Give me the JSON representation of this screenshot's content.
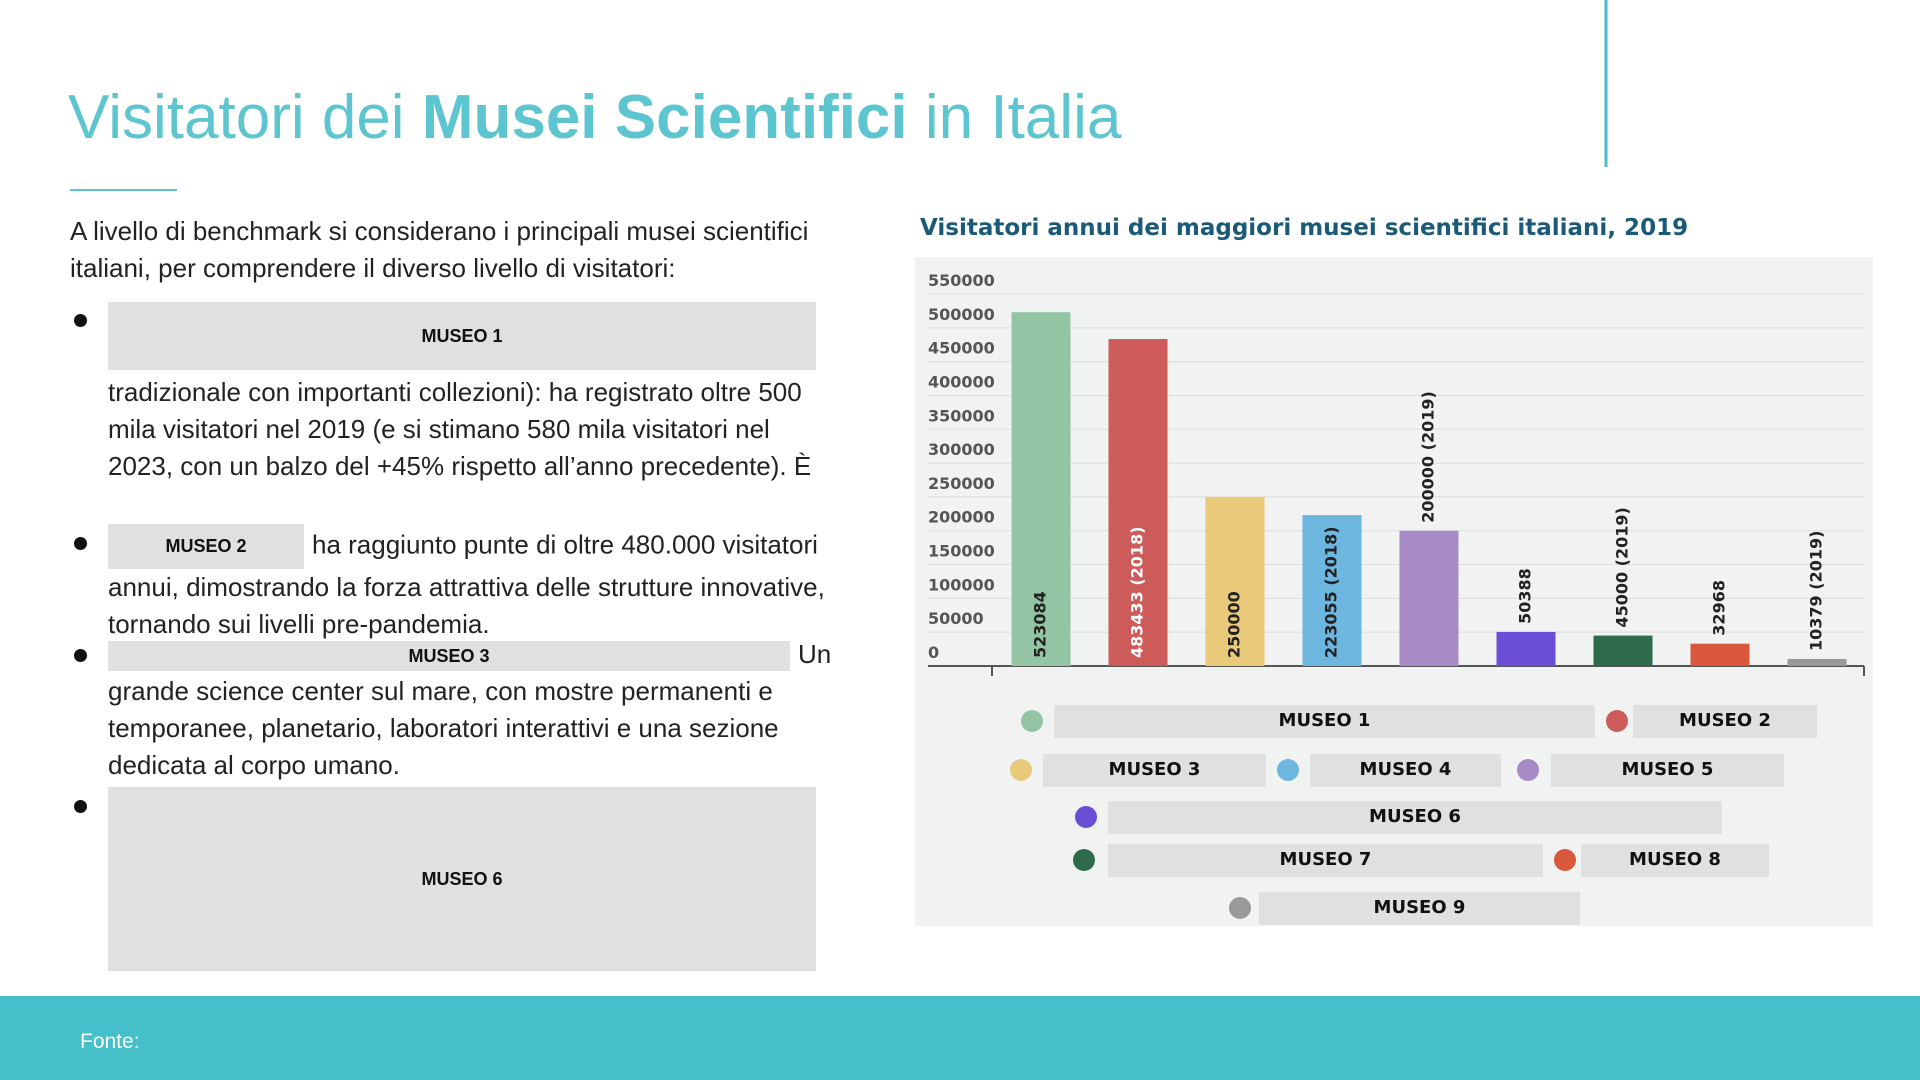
{
  "title": {
    "parts": [
      "Visitatori dei",
      "Musei Scientifici",
      "in Italia"
    ]
  },
  "body": {
    "intro": "A livello di benchmark si considerano i principali musei scientifici italiani, per comprendere il diverso livello di visitatori:",
    "bullets": [
      {
        "label": "MUSEO 1",
        "text": "tradizionale con importanti collezioni): ha registrato oltre 500 mila visitatori nel 2019 (e si stimano 580 mila visitatori nel 2023, con un balzo del +45% rispetto all’anno precedente). È"
      },
      {
        "label": "MUSEO 2",
        "text": "ha raggiunto punte di oltre 480.000 visitatori annui, dimostrando la forza attrattiva delle strutture innovative, tornando sui livelli pre-pandemia."
      },
      {
        "label": "MUSEO 3",
        "text": "Un grande science center sul mare, con mostre permanenti e temporanee, planetario, laboratori interattivi e una sezione dedicata al corpo umano."
      },
      {
        "label": "MUSEO 6"
      }
    ]
  },
  "footer": {
    "source": "Fonte:"
  },
  "chart_data": {
    "type": "bar",
    "title": "Visitatori annui dei maggiori musei scientifici italiani, 2019",
    "categories": [
      "MUSEO 1",
      "MUSEO 2",
      "MUSEO 3",
      "MUSEO 4",
      "MUSEO 5",
      "MUSEO 6",
      "MUSEO 7",
      "MUSEO 8",
      "MUSEO 9"
    ],
    "values": [
      523084,
      483433,
      250000,
      223055,
      200000,
      50388,
      45000,
      32968,
      10379
    ],
    "value_labels": [
      "523084",
      "483433 (2018)",
      "250000",
      "223055 (2018)",
      "200000 (2019)",
      "50388",
      "45000 (2019)",
      "32968",
      "10379 (2019)"
    ],
    "colors": [
      "#93c4a3",
      "#cd5b5a",
      "#e9c97a",
      "#6cb6e0",
      "#a78bc7",
      "#6a4fd6",
      "#2e6b4a",
      "#d9573a",
      "#999999"
    ],
    "ylim": [
      0,
      550000
    ],
    "yticks": [
      0,
      50000,
      100000,
      150000,
      200000,
      250000,
      300000,
      350000,
      400000,
      450000,
      500000,
      550000
    ],
    "grid": true
  }
}
